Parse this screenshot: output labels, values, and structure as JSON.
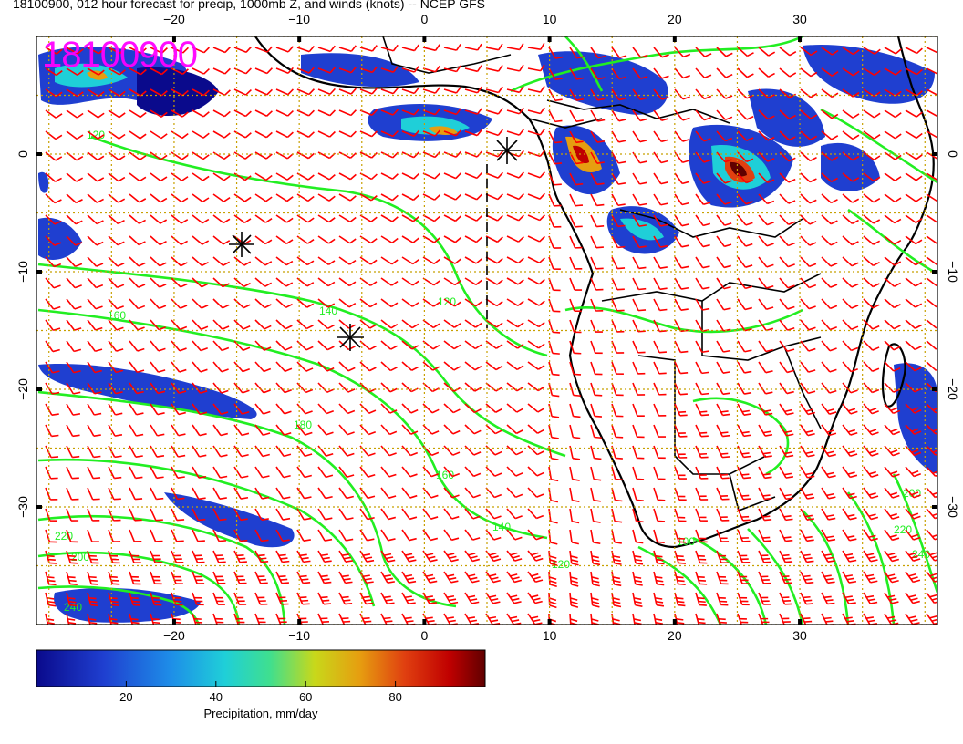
{
  "header": {
    "title": "18100900, 012 hour forecast for precip, 1000mb Z, and winds (knots) -- NCEP GFS",
    "stamp": "18100900"
  },
  "map": {
    "lon_range": [
      -31,
      41
    ],
    "lat_range": [
      -40,
      10
    ],
    "lon_ticks": [
      -20,
      -10,
      0,
      10,
      20,
      30
    ],
    "lat_ticks": [
      0,
      -10,
      -20,
      -30
    ],
    "contour_labels": [
      "120",
      "140",
      "160",
      "180",
      "200",
      "220",
      "240",
      "100"
    ],
    "colors": {
      "wind": "#ff0000",
      "contour": "#22ee22",
      "coast": "#000000",
      "grid": "#c8a000"
    }
  },
  "colorbar": {
    "ticks": [
      "20",
      "40",
      "60",
      "80"
    ],
    "label": "Precipitation, mm/day",
    "range": [
      0,
      100
    ]
  }
}
